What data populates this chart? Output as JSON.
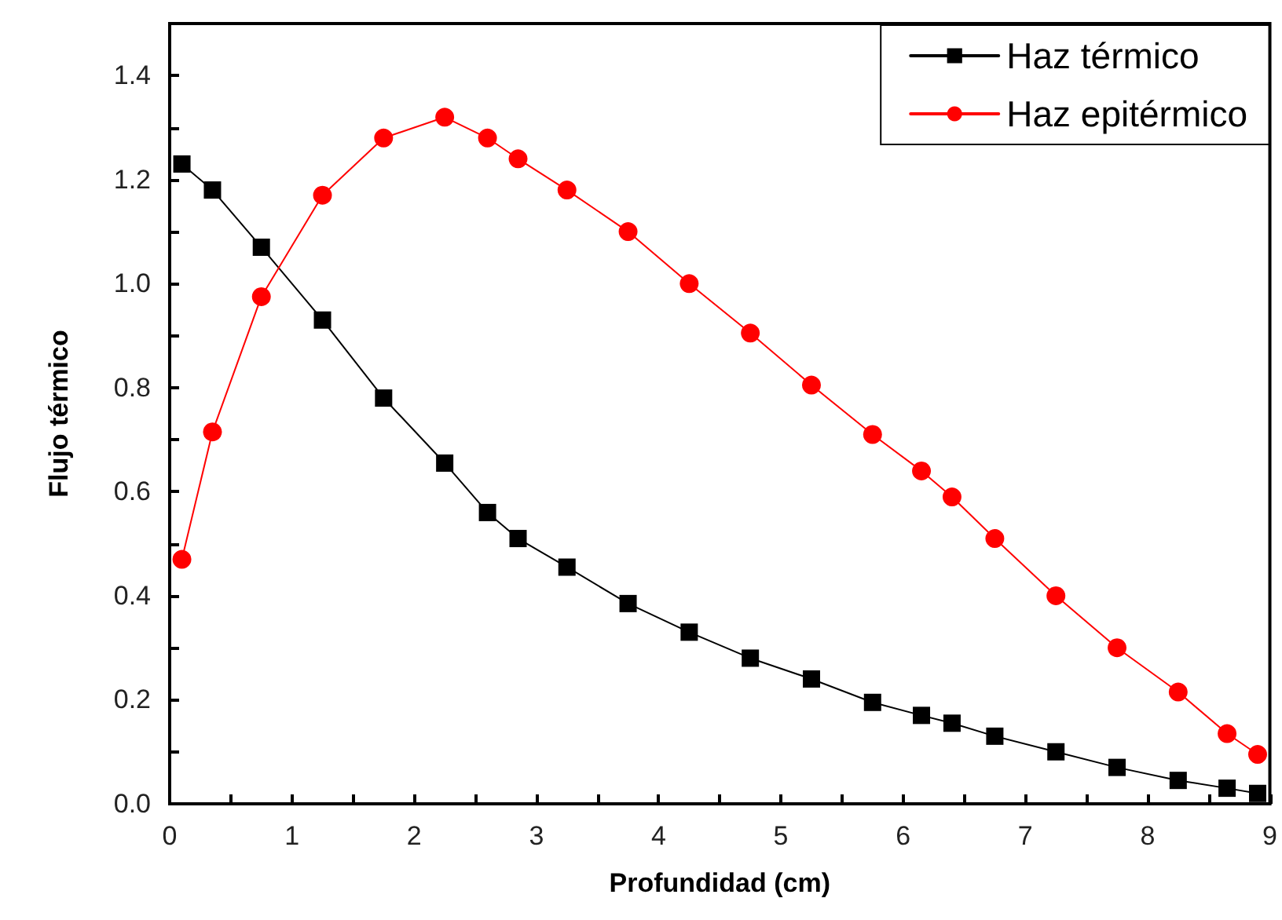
{
  "chart_data": {
    "type": "line",
    "xlabel": "Profundidad (cm)",
    "ylabel": "Flujo térmico",
    "x": [
      0.1,
      0.35,
      0.75,
      1.25,
      1.75,
      2.25,
      2.6,
      2.85,
      3.25,
      3.75,
      4.25,
      4.75,
      5.25,
      5.75,
      6.15,
      6.4,
      6.75,
      7.25,
      7.75,
      8.25,
      8.65,
      8.9
    ],
    "series": [
      {
        "name": "Haz térmico",
        "color": "#000000",
        "marker": "square",
        "values": [
          1.23,
          1.18,
          1.07,
          0.93,
          0.78,
          0.655,
          0.56,
          0.51,
          0.455,
          0.385,
          0.33,
          0.28,
          0.24,
          0.195,
          0.17,
          0.155,
          0.13,
          0.1,
          0.07,
          0.045,
          0.03,
          0.02
        ]
      },
      {
        "name": "Haz epitérmico",
        "color": "#ff0000",
        "marker": "circle",
        "values": [
          0.47,
          0.715,
          0.975,
          1.17,
          1.28,
          1.32,
          1.28,
          1.24,
          1.18,
          1.1,
          1.0,
          0.905,
          0.805,
          0.71,
          0.64,
          0.59,
          0.51,
          0.4,
          0.3,
          0.215,
          0.135,
          0.095
        ]
      }
    ],
    "xlim": [
      0,
      9
    ],
    "ylim": [
      0,
      1.5
    ],
    "xticks": [
      0,
      {
        "value": 0.5,
        "label": null
      },
      1,
      {
        "value": 1.5,
        "label": null
      },
      2,
      {
        "value": 2.5,
        "label": null
      },
      3,
      {
        "value": 3.5,
        "label": null
      },
      4,
      {
        "value": 4.5,
        "label": null
      },
      5,
      {
        "value": 5.5,
        "label": null
      },
      6,
      {
        "value": 6.5,
        "label": null
      },
      7,
      {
        "value": 7.5,
        "label": null
      },
      8,
      {
        "value": 8.5,
        "label": null
      },
      9
    ],
    "yticks": [
      {
        "value": 0,
        "label": "0.0"
      },
      {
        "value": 0.1,
        "label": null
      },
      {
        "value": 0.2,
        "label": "0.2"
      },
      {
        "value": 0.3,
        "label": null
      },
      {
        "value": 0.4,
        "label": "0.4"
      },
      {
        "value": 0.5,
        "label": null
      },
      {
        "value": 0.6,
        "label": "0.6"
      },
      {
        "value": 0.7,
        "label": null
      },
      {
        "value": 0.8,
        "label": "0.8"
      },
      {
        "value": 0.9,
        "label": null
      },
      {
        "value": 1.0,
        "label": "1.0"
      },
      {
        "value": 1.1,
        "label": null
      },
      {
        "value": 1.2,
        "label": "1.2"
      },
      {
        "value": 1.3,
        "label": null
      },
      {
        "value": 1.4,
        "label": "1.4"
      }
    ],
    "legend": "top right",
    "grid": false,
    "line_style": "solid"
  }
}
